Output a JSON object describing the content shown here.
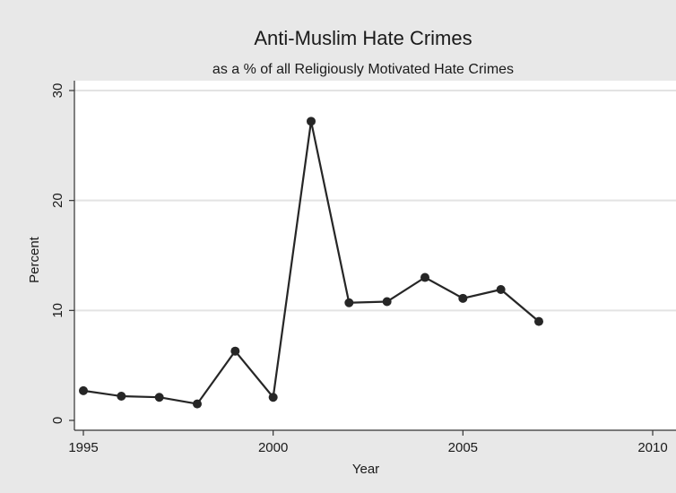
{
  "chart_data": {
    "type": "line",
    "title": "Anti-Muslim Hate Crimes",
    "subtitle": "as a % of all Religiously Motivated Hate Crimes",
    "xlabel": "Year",
    "ylabel": "Percent",
    "xlim": [
      1995,
      2010
    ],
    "ylim": [
      0,
      30
    ],
    "x_ticks": [
      1995,
      2000,
      2005,
      2010
    ],
    "y_ticks": [
      0,
      10,
      20,
      30
    ],
    "grid": "horizontal",
    "legend": "none",
    "colors": {
      "background": "#e8e8e8",
      "plot_area": "#ffffff",
      "line": "#262626",
      "grid": "#e3e3e3"
    },
    "series": [
      {
        "x": [
          1995,
          1996,
          1997,
          1998,
          1999,
          2000,
          2001,
          2002,
          2003,
          2004,
          2005,
          2006,
          2007
        ],
        "values": [
          2.7,
          2.2,
          2.1,
          1.5,
          6.3,
          2.1,
          27.2,
          10.7,
          10.8,
          13.0,
          11.1,
          11.9,
          9.0
        ]
      }
    ]
  }
}
